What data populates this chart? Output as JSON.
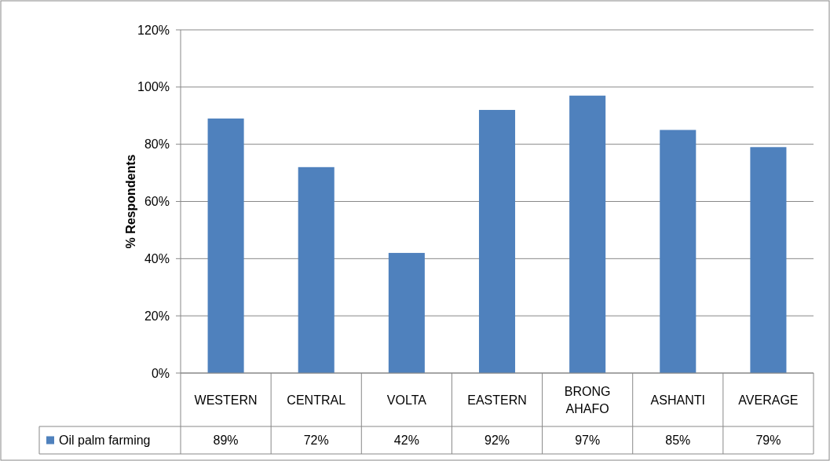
{
  "chart_data": {
    "type": "bar",
    "ylabel": "% Respondents",
    "categories": [
      "WESTERN",
      "CENTRAL",
      "VOLTA",
      "EASTERN",
      "BRONG AHAFO",
      "ASHANTI",
      "AVERAGE"
    ],
    "series": [
      {
        "name": "Oil palm farming",
        "color": "#4f81bd",
        "values": [
          89,
          72,
          42,
          92,
          97,
          85,
          79
        ],
        "value_labels": [
          "89%",
          "72%",
          "42%",
          "92%",
          "97%",
          "85%",
          "79%"
        ]
      }
    ],
    "ylim": [
      0,
      120
    ],
    "yticks": [
      {
        "value": 0,
        "label": "0%"
      },
      {
        "value": 20,
        "label": "20%"
      },
      {
        "value": 40,
        "label": "40%"
      },
      {
        "value": 60,
        "label": "60%"
      },
      {
        "value": 80,
        "label": "80%"
      },
      {
        "value": 100,
        "label": "100%"
      },
      {
        "value": 120,
        "label": "120%"
      }
    ],
    "grid": "y",
    "legend": "bottom"
  }
}
